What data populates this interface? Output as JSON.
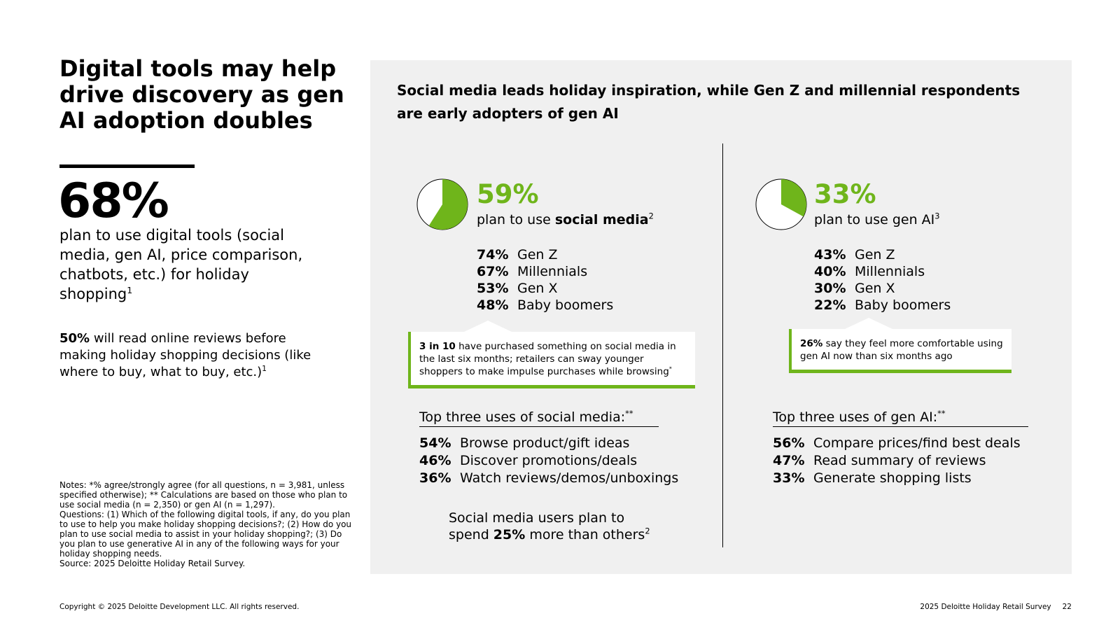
{
  "title": "Digital tools may help drive discovery as gen AI adoption doubles",
  "headline_stat": {
    "value": "68%",
    "text": "plan to use digital tools (social media, gen AI, price comparison, chatbots, etc.) for holiday shopping",
    "note": "1"
  },
  "reviews_stat": {
    "bold": "50%",
    "text": " will read online reviews before making holiday shopping decisions (like where to buy, what to buy, etc.)",
    "note": "1"
  },
  "notes": [
    "Notes: *% agree/strongly agree (for all questions, n = 3,981, unless specified otherwise); ** Calculations are based on those who plan to use social media (n = 2,350) or gen AI (n = 1,297).",
    "Questions: (1) Which of the following digital tools, if any, do you plan to use to help you make holiday shopping decisions?; (2) How do you plan to use social media to assist in your holiday shopping?; (3) Do you plan to use generative AI in any of the following ways for your holiday shopping needs.",
    "Source: 2025 Deloitte Holiday Retail Survey."
  ],
  "panel": {
    "title": "Social media leads holiday inspiration, while Gen Z and millennial respondents are early adopters of gen AI",
    "columns": [
      {
        "pie": {
          "value": 59,
          "label": "59%",
          "color": "#6fb51b"
        },
        "subtitle_pre": "plan to use ",
        "subtitle_bold": "social media",
        "subtitle_note": "2",
        "breakdown": [
          {
            "value": "74%",
            "label": "Gen Z"
          },
          {
            "value": "67%",
            "label": "Millennials"
          },
          {
            "value": "53%",
            "label": "Gen X"
          },
          {
            "value": "48%",
            "label": "Baby boomers"
          }
        ],
        "callout": {
          "bold": "3 in 10",
          "text": " have purchased something on social media in the last six months; retailers can sway younger shoppers to make impulse purchases while browsing",
          "note": "*"
        },
        "uses_title": "Top three uses of social media:",
        "uses_note": "**",
        "uses": [
          {
            "value": "54%",
            "label": "Browse product/gift ideas"
          },
          {
            "value": "46%",
            "label": "Discover promotions/deals"
          },
          {
            "value": "36%",
            "label": "Watch reviews/demos/unboxings"
          }
        ],
        "closing": {
          "pre": "Social media users plan to spend ",
          "bold": "25%",
          "post": " more than others",
          "note": "2"
        }
      },
      {
        "pie": {
          "value": 33,
          "label": "33%",
          "color": "#6fb51b"
        },
        "subtitle_pre": "plan to use gen AI",
        "subtitle_note": "3",
        "breakdown": [
          {
            "value": "43%",
            "label": "Gen Z"
          },
          {
            "value": "40%",
            "label": "Millennials"
          },
          {
            "value": "30%",
            "label": "Gen X"
          },
          {
            "value": "22%",
            "label": "Baby boomers"
          }
        ],
        "callout": {
          "bold": "26%",
          "text": " say they feel more comfortable using gen AI now than six months ago"
        },
        "uses_title": "Top three uses of gen AI:",
        "uses_note": "**",
        "uses": [
          {
            "value": "56%",
            "label": "Compare prices/find best deals"
          },
          {
            "value": "47%",
            "label": "Read summary of reviews"
          },
          {
            "value": "33%",
            "label": "Generate shopping lists"
          }
        ]
      }
    ]
  },
  "footer": {
    "copyright": "Copyright © 2025 Deloitte Development LLC. All rights reserved.",
    "source": "2025 Deloitte Holiday Retail Survey",
    "page": "22"
  }
}
